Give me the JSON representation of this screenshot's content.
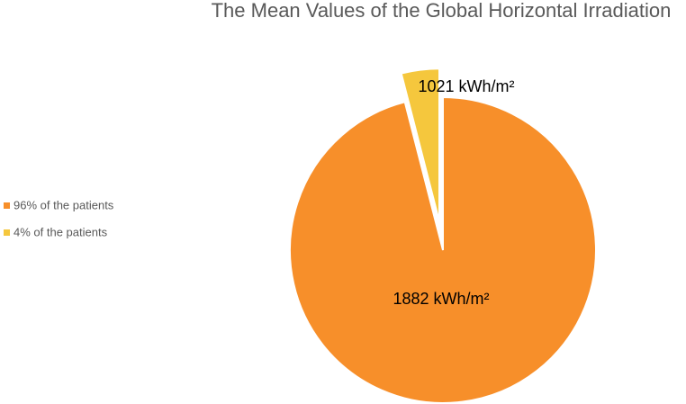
{
  "chart_data": {
    "type": "pie",
    "title": "The Mean Values of the Global Horizontal Irradiation",
    "categories": [
      "96% of the patients",
      "4% of the patients"
    ],
    "values": [
      96,
      4
    ],
    "colors": [
      "#f78f2a",
      "#f5c73d"
    ],
    "annotations": [
      "1882 kWh/m²",
      "1021 kWh/m²"
    ],
    "legend": "left"
  }
}
